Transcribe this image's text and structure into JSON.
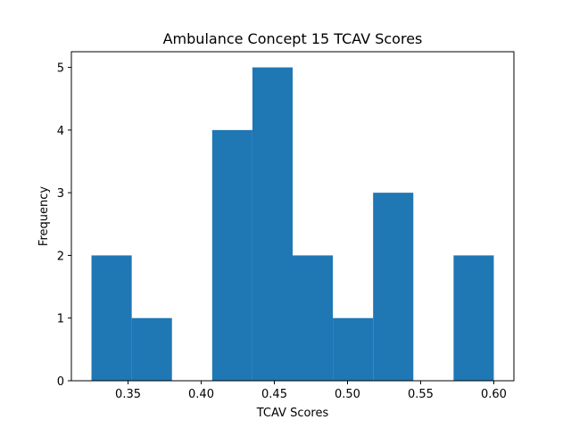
{
  "chart_data": {
    "type": "bar",
    "subtype": "histogram",
    "title": "Ambulance Concept 15 TCAV Scores",
    "xlabel": "TCAV Scores",
    "ylabel": "Frequency",
    "bin_edges": [
      0.325,
      0.3525,
      0.38,
      0.4075,
      0.435,
      0.4625,
      0.49,
      0.5175,
      0.545,
      0.5725,
      0.6
    ],
    "values": [
      2,
      1,
      0,
      4,
      5,
      2,
      1,
      3,
      0,
      2
    ],
    "xlim": [
      0.31125,
      0.61375
    ],
    "ylim": [
      0,
      5.25
    ],
    "xticks": [
      0.35,
      0.4,
      0.45,
      0.5,
      0.55,
      0.6
    ],
    "xtick_labels": [
      "0.35",
      "0.40",
      "0.45",
      "0.50",
      "0.55",
      "0.60"
    ],
    "yticks": [
      0,
      1,
      2,
      3,
      4,
      5
    ],
    "ytick_labels": [
      "0",
      "1",
      "2",
      "3",
      "4",
      "5"
    ],
    "bar_color": "#1f77b4",
    "grid": false,
    "legend": false
  }
}
